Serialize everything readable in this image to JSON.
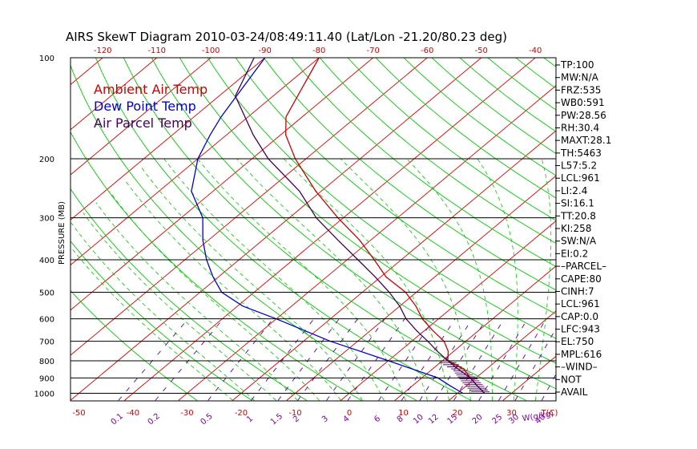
{
  "colors": {
    "ambient": "#cc0000",
    "dewpoint": "#0000cc",
    "parcel": "#44005a",
    "isotherm": "#e00000",
    "dry_adiabat": "#00cc00",
    "moist_adiabat": "#00cc00",
    "mixing_ratio": "#5a00a0",
    "isobar": "#000000",
    "top_axis": "#cc0000",
    "bottom_axis": "#cc0000",
    "mixing_axis": "#8000a0"
  },
  "chart_data": {
    "type": "line",
    "title": "AIRS SkewT Diagram 2010-03-24/08:49:11.40 (Lat/Lon -21.20/80.23 deg)",
    "ylabel": "PRESSURE (MB)",
    "x_unit_label": "T(C)",
    "mixing_unit_label": "W(g/kg)",
    "y_ticks": [
      "100",
      "200",
      "300",
      "400",
      "500",
      "600",
      "700",
      "800",
      "900",
      "1000"
    ],
    "y_tick_values": [
      100,
      200,
      300,
      400,
      500,
      600,
      700,
      800,
      900,
      1000
    ],
    "ylim": [
      100,
      1050
    ],
    "y_scale": "log",
    "top_ticks": [
      "-120",
      "-110",
      "-100",
      "-90",
      "-80",
      "-70",
      "-60",
      "-50",
      "-40"
    ],
    "top_tick_values": [
      -120,
      -110,
      -100,
      -90,
      -80,
      -70,
      -60,
      -50,
      -40
    ],
    "bottom_ticks": [
      "-50",
      "-40",
      "-30",
      "-20",
      "-10",
      "0",
      "10",
      "20",
      "30"
    ],
    "bottom_tick_values": [
      -50,
      -40,
      -30,
      -20,
      -10,
      0,
      10,
      20,
      30
    ],
    "mixing_ticks": [
      "0.1",
      "0.2",
      "0.5",
      "1",
      "1.5",
      "2",
      "3",
      "4",
      "6",
      "8",
      "10",
      "12",
      "15",
      "20",
      "25",
      "30",
      "40"
    ],
    "mixing_tick_values": [
      0.1,
      0.2,
      0.5,
      1,
      1.5,
      2,
      3,
      4,
      6,
      8,
      10,
      12,
      15,
      20,
      25,
      30,
      40
    ],
    "legend": [
      "Ambient Air Temp",
      "Dew Point Temp",
      "Air Parcel Temp"
    ],
    "series": [
      {
        "name": "Ambient Air Temp",
        "points": [
          [
            100,
            -80
          ],
          [
            150,
            -73
          ],
          [
            170,
            -69
          ],
          [
            200,
            -62
          ],
          [
            250,
            -51
          ],
          [
            300,
            -41
          ],
          [
            350,
            -32
          ],
          [
            400,
            -25
          ],
          [
            450,
            -19
          ],
          [
            500,
            -12
          ],
          [
            550,
            -7
          ],
          [
            600,
            -3
          ],
          [
            650,
            1.5
          ],
          [
            700,
            6
          ],
          [
            750,
            9
          ],
          [
            800,
            11
          ],
          [
            850,
            16
          ],
          [
            900,
            19
          ],
          [
            950,
            22
          ],
          [
            1000,
            25
          ]
        ]
      },
      {
        "name": "Dew Point Temp",
        "points": [
          [
            100,
            -90
          ],
          [
            150,
            -85
          ],
          [
            170,
            -83
          ],
          [
            200,
            -80
          ],
          [
            250,
            -74
          ],
          [
            300,
            -66
          ],
          [
            350,
            -61
          ],
          [
            400,
            -56
          ],
          [
            450,
            -51
          ],
          [
            500,
            -46
          ],
          [
            550,
            -39
          ],
          [
            600,
            -30
          ],
          [
            700,
            -15
          ],
          [
            800,
            0
          ],
          [
            900,
            13
          ],
          [
            950,
            17
          ],
          [
            1000,
            21
          ]
        ]
      },
      {
        "name": "Air Parcel Temp",
        "points": [
          [
            100,
            -92
          ],
          [
            130,
            -87
          ],
          [
            170,
            -75
          ],
          [
            200,
            -67
          ],
          [
            250,
            -54
          ],
          [
            300,
            -45
          ],
          [
            350,
            -36
          ],
          [
            400,
            -28
          ],
          [
            450,
            -21
          ],
          [
            500,
            -15
          ],
          [
            550,
            -10
          ],
          [
            600,
            -6
          ],
          [
            650,
            -1.5
          ],
          [
            700,
            3
          ],
          [
            750,
            7
          ],
          [
            800,
            11
          ],
          [
            850,
            15
          ],
          [
            900,
            19
          ],
          [
            950,
            22
          ],
          [
            1000,
            25
          ]
        ]
      }
    ]
  },
  "stats": [
    "TP:100",
    "MW:N/A",
    "FRZ:535",
    "WB0:591",
    "PW:28.56",
    "RH:30.4",
    "MAXT:28.1",
    "TH:5463",
    "L57:5.2",
    "LCL:961",
    "LI:2.4",
    "SI:16.1",
    "TT:20.8",
    "KI:258",
    "SW:N/A",
    "EI:0.2",
    "–PARCEL–",
    "CAPE:80",
    "CINH:7",
    "LCL:961",
    "CAP:0.0",
    "LFC:943",
    "EL:750",
    "MPL:616",
    "–WIND–",
    "NOT",
    "AVAIL"
  ]
}
